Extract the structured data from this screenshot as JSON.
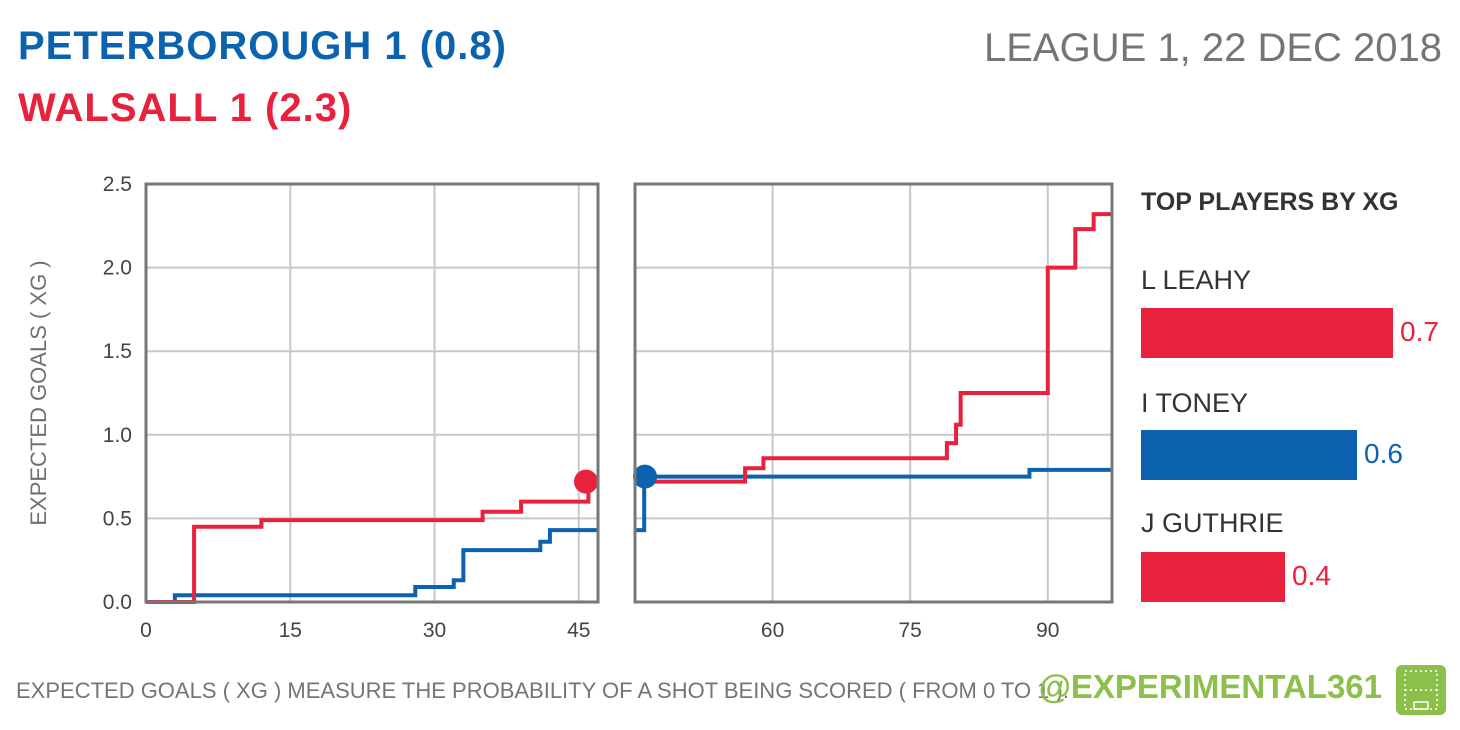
{
  "header": {
    "home": "PETERBOROUGH  1  (0.8)",
    "away": "WALSALL  1  (2.3)",
    "competition": "LEAGUE 1, 22 DEC 2018",
    "home_color": "#0b63b0",
    "away_color": "#e8213c"
  },
  "chart_data": {
    "type": "line",
    "xlabel": "",
    "ylabel": "EXPECTED GOALS ( XG )",
    "ylim": [
      0,
      2.5
    ],
    "y_ticks": [
      "0.0",
      "0.5",
      "1.0",
      "1.5",
      "2.0",
      "2.5"
    ],
    "panels": [
      {
        "xlim": [
          0,
          47
        ],
        "x_ticks": [
          "0",
          "15",
          "30",
          "45"
        ]
      },
      {
        "xlim": [
          45,
          97
        ],
        "x_ticks": [
          "60",
          "75",
          "90"
        ]
      }
    ],
    "grid": true,
    "series": [
      {
        "name": "PETERBOROUGH",
        "color": "#0b63b0",
        "step": true,
        "first_half": [
          [
            0,
            0
          ],
          [
            3,
            0.04
          ],
          [
            28,
            0.09
          ],
          [
            32,
            0.13
          ],
          [
            33,
            0.31
          ],
          [
            41,
            0.36
          ],
          [
            42,
            0.43
          ],
          [
            47,
            0.43
          ]
        ],
        "second_half": [
          [
            45,
            0.43
          ],
          [
            46,
            0.75
          ],
          [
            88,
            0.79
          ],
          [
            97,
            0.79
          ]
        ],
        "half_marker": [
          46,
          0.75
        ]
      },
      {
        "name": "WALSALL",
        "color": "#e8213c",
        "step": true,
        "first_half": [
          [
            0,
            0
          ],
          [
            5,
            0.45
          ],
          [
            12,
            0.49
          ],
          [
            35,
            0.54
          ],
          [
            39,
            0.6
          ],
          [
            46,
            0.72
          ]
        ],
        "second_half": [
          [
            46,
            0.72
          ],
          [
            57,
            0.8
          ],
          [
            59,
            0.86
          ],
          [
            79,
            0.95
          ],
          [
            80,
            1.06
          ],
          [
            80.5,
            1.25
          ],
          [
            90,
            2.0
          ],
          [
            93,
            2.23
          ],
          [
            95,
            2.32
          ],
          [
            97,
            2.32
          ]
        ],
        "half_marker": [
          45.5,
          0.72
        ]
      }
    ]
  },
  "players": {
    "title": "TOP PLAYERS BY XG",
    "max": 0.75,
    "items": [
      {
        "name": "L LEAHY",
        "value": 0.7,
        "label": "0.7",
        "color": "#e8213c"
      },
      {
        "name": "I TONEY",
        "value": 0.6,
        "label": "0.6",
        "color": "#0b63b0"
      },
      {
        "name": "J GUTHRIE",
        "value": 0.4,
        "label": "0.4",
        "color": "#e8213c"
      }
    ]
  },
  "footer": {
    "note": "EXPECTED GOALS ( XG ) MEASURE THE PROBABILITY OF A SHOT BEING SCORED ( FROM 0 TO 1 ).",
    "handle": "@EXPERIMENTAL361",
    "brand_color": "#8cc04b"
  }
}
